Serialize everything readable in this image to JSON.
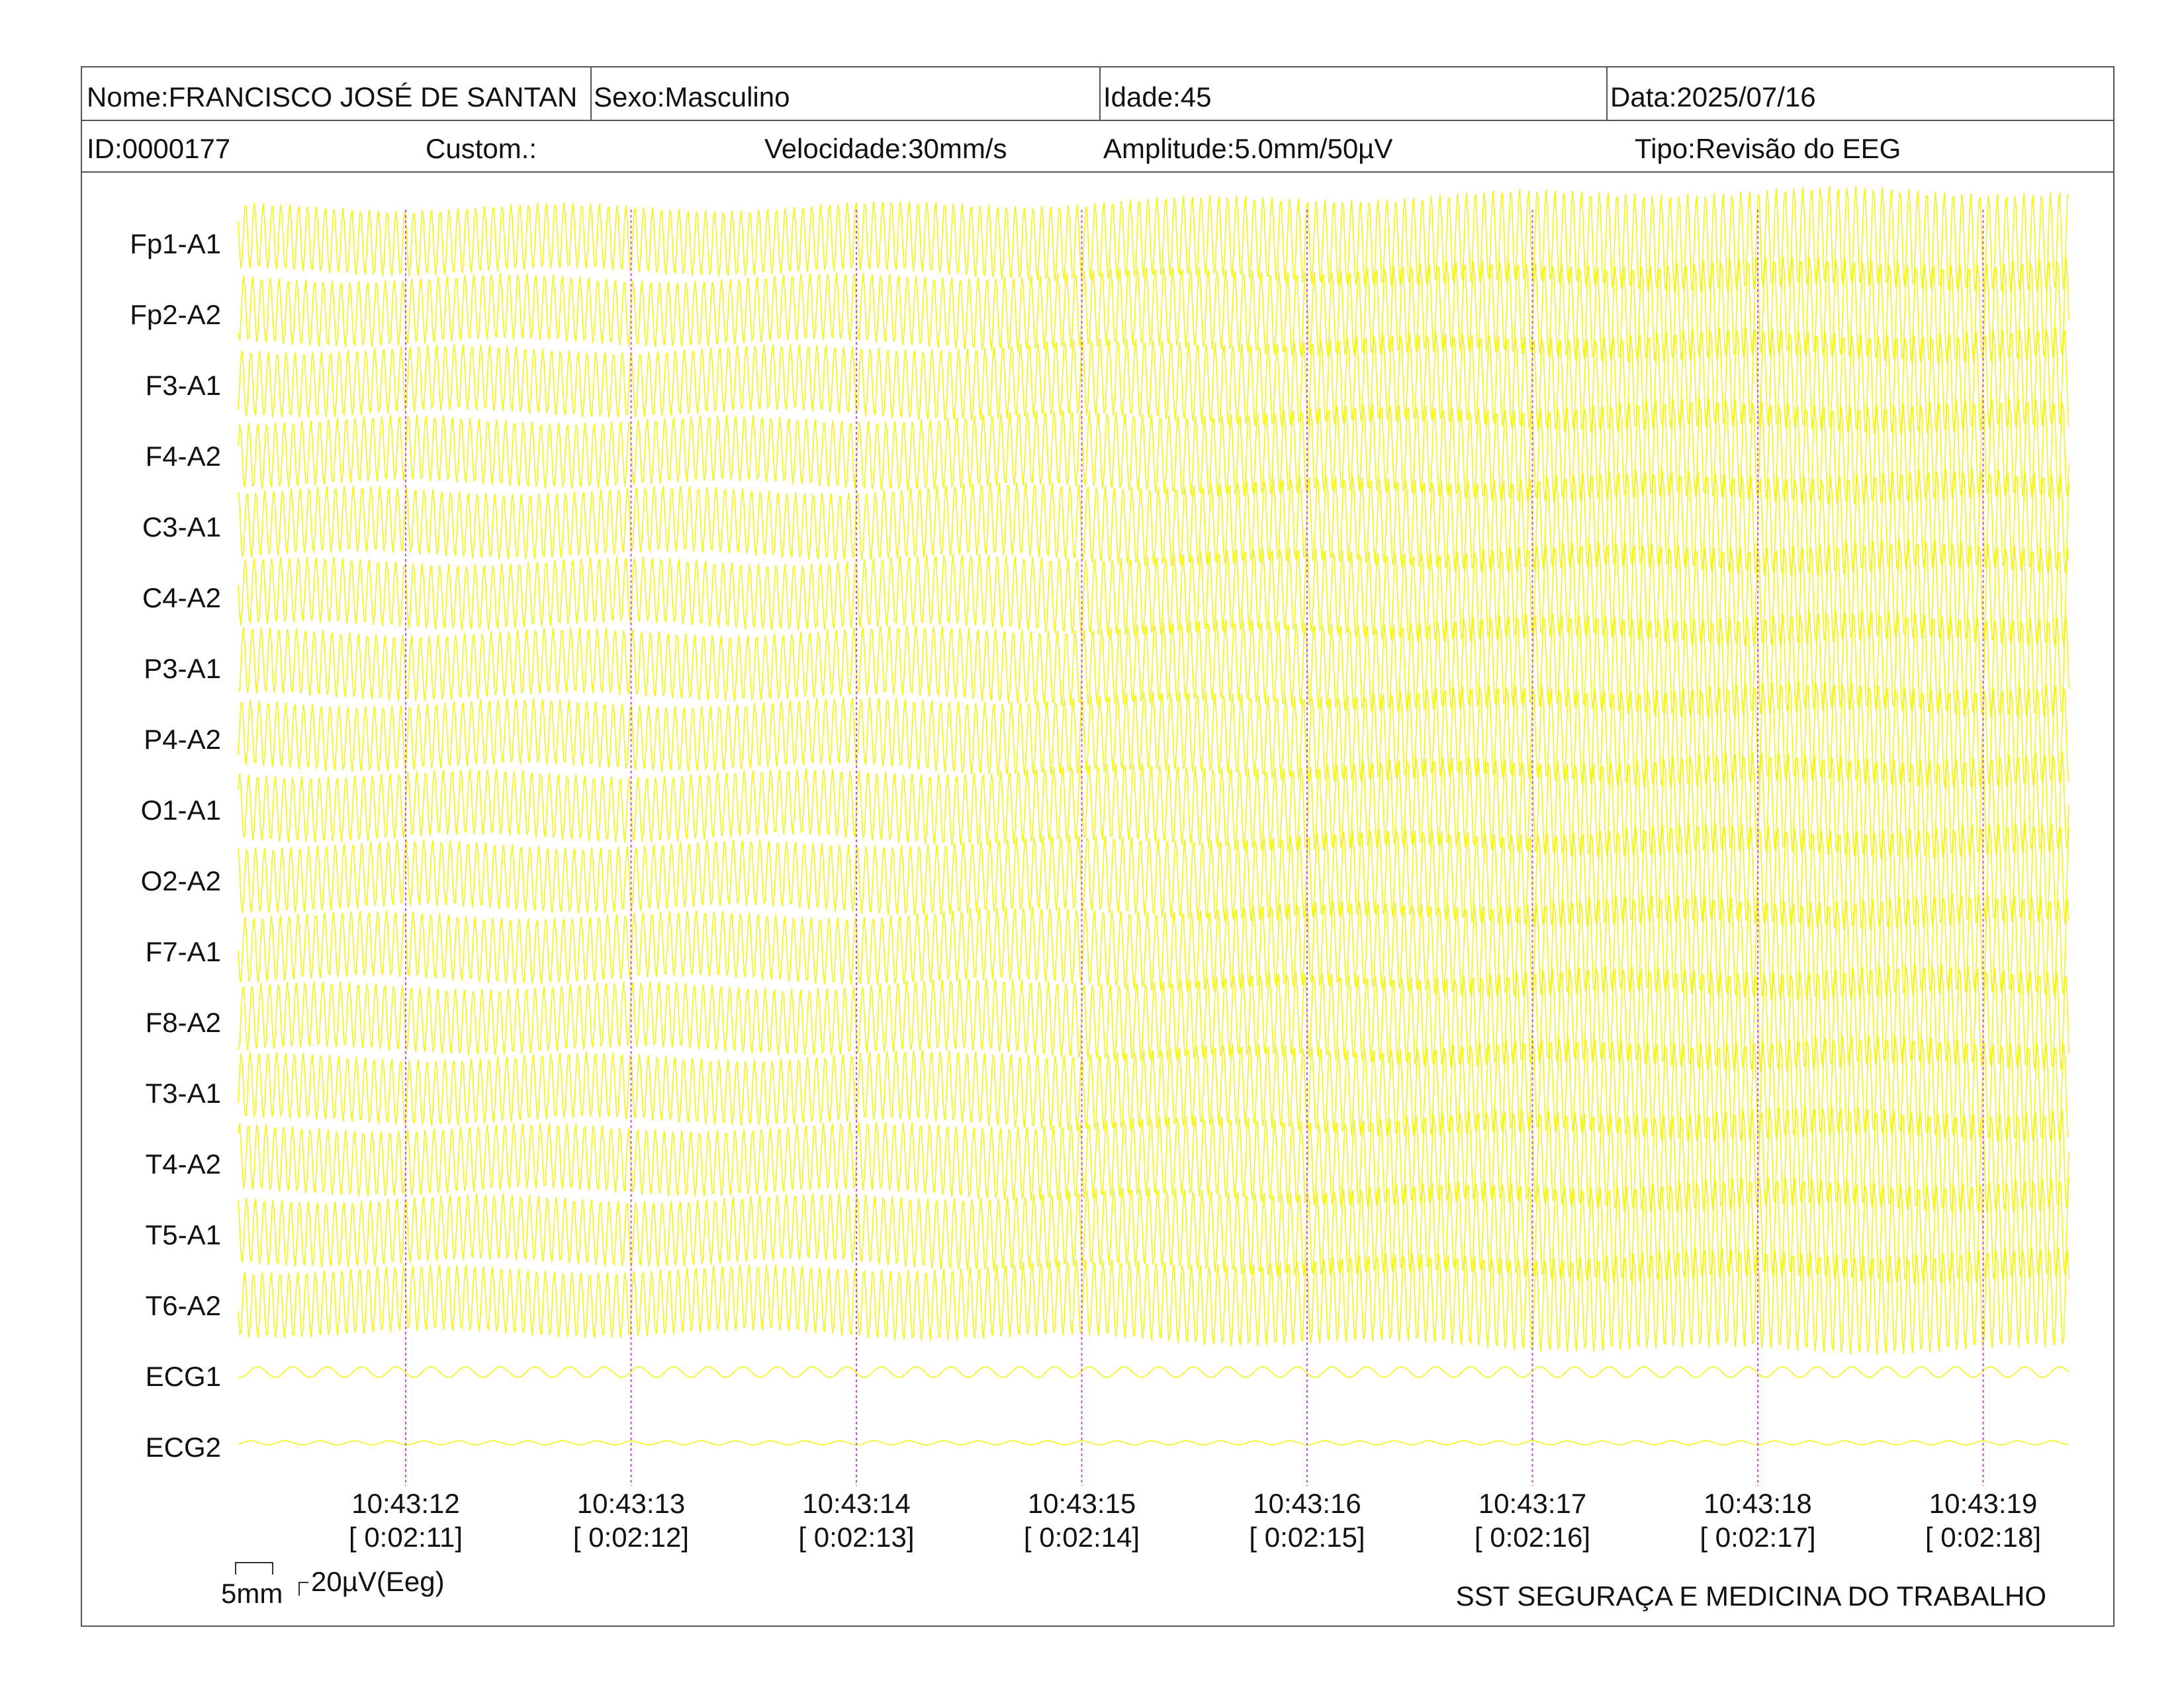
{
  "header": {
    "name": "Nome:FRANCISCO JOSÉ DE SANTAN",
    "sex": "Sexo:Masculino",
    "age": "Idade:45",
    "date": "Data:2025/07/16",
    "id": "ID:0000177",
    "custom": "Custom.:",
    "speed": "Velocidade:30mm/s",
    "amplitude": "Amplitude:5.0mm/50µV",
    "type": "Tipo:Revisão do EEG"
  },
  "channels": [
    "Fp1-A1",
    "Fp2-A2",
    "F3-A1",
    "F4-A2",
    "C3-A1",
    "C4-A2",
    "P3-A1",
    "P4-A2",
    "O1-A1",
    "O2-A2",
    "F7-A1",
    "F8-A2",
    "T3-A1",
    "T4-A2",
    "T5-A1",
    "T6-A2",
    "ECG1",
    "ECG2"
  ],
  "time_markers": [
    {
      "time": "10:43:12",
      "elapsed": "[ 0:02:11]"
    },
    {
      "time": "10:43:13",
      "elapsed": "[ 0:02:12]"
    },
    {
      "time": "10:43:14",
      "elapsed": "[ 0:02:13]"
    },
    {
      "time": "10:43:15",
      "elapsed": "[ 0:02:14]"
    },
    {
      "time": "10:43:16",
      "elapsed": "[ 0:02:15]"
    },
    {
      "time": "10:43:17",
      "elapsed": "[ 0:02:16]"
    },
    {
      "time": "10:43:18",
      "elapsed": "[ 0:02:17]"
    },
    {
      "time": "10:43:19",
      "elapsed": "[ 0:02:18]"
    }
  ],
  "scale": {
    "time": "5mm",
    "voltage": "20µV(Eeg)"
  },
  "footer": "SST SEGURAÇA E MEDICINA DO TRABALHO"
}
